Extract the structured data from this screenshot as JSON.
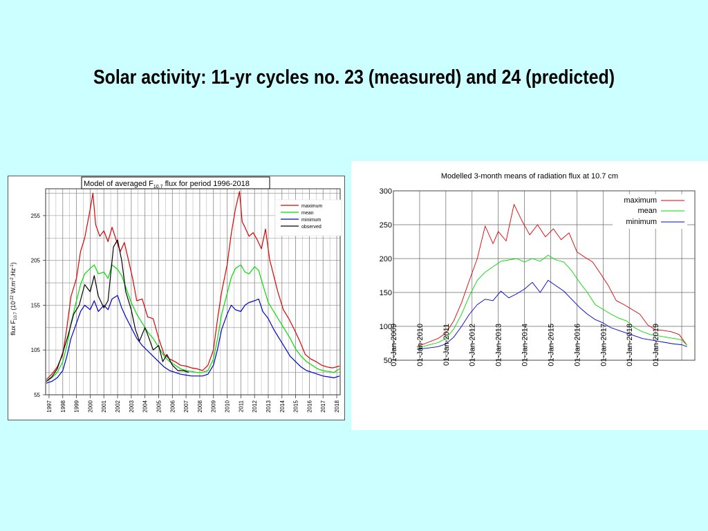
{
  "slide": {
    "title": "Solar activity: 11-yr cycles no. 23 (measured) and 24 (predicted)"
  },
  "colors": {
    "background": "#ccffff",
    "maximum": "#dd0000",
    "mean": "#00dd00",
    "minimum": "#0000cc",
    "observed": "#000000"
  },
  "chart_data": [
    {
      "type": "line",
      "title": "Model of averaged F10.7 flux for period 1996-2018",
      "title_main": "Model of averaged F",
      "title_sub": "10.7",
      "title_tail": " flux for period 1996-2018",
      "ylabel_pre": "flux F",
      "ylabel_sub": "10.7",
      "ylabel_mid": " (10",
      "ylabel_sup1": "-22",
      "ylabel_mid2": " W.m",
      "ylabel_sup2": "-2",
      "ylabel_mid3": ".Hz",
      "ylabel_sup3": "-1",
      "ylabel_end": ")",
      "xlabel": "",
      "ylim": [
        55,
        285
      ],
      "xlim": [
        1996.75,
        2018.25
      ],
      "yticks": [
        "55",
        "105",
        "155",
        "205",
        "255"
      ],
      "xticks": [
        "1997",
        "1998",
        "1999",
        "2000",
        "2001",
        "2002",
        "2003",
        "2004",
        "2005",
        "2006",
        "2007",
        "2008",
        "2009",
        "2010",
        "2011",
        "2012",
        "2013",
        "2014",
        "2015",
        "2016",
        "2017",
        "2018"
      ],
      "grid": true,
      "legend_position": "top-right",
      "series": [
        {
          "name": "maximum",
          "color": "#dd0000",
          "x": [
            1996.8,
            1997.2,
            1997.6,
            1998.0,
            1998.3,
            1998.6,
            1999.0,
            1999.3,
            1999.6,
            2000.0,
            2000.2,
            2000.4,
            2000.7,
            2001.0,
            2001.3,
            2001.6,
            2001.9,
            2002.2,
            2002.5,
            2002.8,
            2003.1,
            2003.4,
            2003.8,
            2004.2,
            2004.6,
            2005.0,
            2005.4,
            2005.8,
            2006.2,
            2006.6,
            2007.0,
            2007.4,
            2007.8,
            2008.2,
            2008.6,
            2009.0,
            2009.3,
            2009.6,
            2010.0,
            2010.3,
            2010.6,
            2010.9,
            2011.1,
            2011.3,
            2011.6,
            2011.9,
            2012.2,
            2012.5,
            2012.8,
            2013.1,
            2013.4,
            2013.7,
            2014.1,
            2014.5,
            2014.9,
            2015.3,
            2015.7,
            2016.1,
            2016.5,
            2016.9,
            2017.3,
            2017.7,
            2018.2
          ],
          "y": [
            72,
            78,
            86,
            100,
            130,
            165,
            185,
            215,
            230,
            262,
            280,
            245,
            232,
            238,
            226,
            242,
            228,
            215,
            225,
            205,
            185,
            160,
            162,
            142,
            140,
            118,
            100,
            95,
            92,
            88,
            87,
            85,
            84,
            82,
            88,
            105,
            140,
            170,
            200,
            235,
            262,
            282,
            248,
            242,
            232,
            236,
            228,
            218,
            240,
            206,
            188,
            170,
            150,
            140,
            128,
            115,
            100,
            95,
            92,
            88,
            86,
            85,
            87
          ]
        },
        {
          "name": "mean",
          "color": "#00dd00",
          "x": [
            1996.8,
            1997.2,
            1997.6,
            1998.0,
            1998.3,
            1998.6,
            1999.0,
            1999.3,
            1999.6,
            2000.0,
            2000.3,
            2000.6,
            2001.0,
            2001.3,
            2001.6,
            2002.0,
            2002.3,
            2002.6,
            2003.0,
            2003.4,
            2003.8,
            2004.2,
            2004.6,
            2005.0,
            2005.4,
            2005.8,
            2006.2,
            2006.6,
            2007.0,
            2007.4,
            2007.8,
            2008.2,
            2008.6,
            2009.0,
            2009.3,
            2009.6,
            2010.0,
            2010.3,
            2010.6,
            2011.0,
            2011.3,
            2011.6,
            2012.0,
            2012.3,
            2012.6,
            2013.0,
            2013.4,
            2013.8,
            2014.2,
            2014.6,
            2015.0,
            2015.4,
            2015.8,
            2016.2,
            2016.6,
            2017.0,
            2017.4,
            2017.8,
            2018.2
          ],
          "y": [
            70,
            74,
            80,
            92,
            110,
            135,
            160,
            178,
            190,
            196,
            200,
            190,
            192,
            185,
            200,
            195,
            188,
            175,
            158,
            145,
            135,
            125,
            118,
            108,
            98,
            92,
            88,
            84,
            82,
            81,
            80,
            80,
            82,
            95,
            118,
            145,
            168,
            186,
            196,
            200,
            192,
            190,
            198,
            194,
            178,
            158,
            148,
            138,
            128,
            118,
            106,
            98,
            92,
            88,
            84,
            82,
            81,
            80,
            84
          ]
        },
        {
          "name": "minimum",
          "color": "#0000cc",
          "x": [
            1996.8,
            1997.2,
            1997.6,
            1998.0,
            1998.3,
            1998.6,
            1999.0,
            1999.3,
            1999.6,
            2000.0,
            2000.3,
            2000.6,
            2001.0,
            2001.3,
            2001.6,
            2002.0,
            2002.3,
            2002.6,
            2003.0,
            2003.4,
            2003.8,
            2004.2,
            2004.6,
            2005.0,
            2005.4,
            2005.8,
            2006.2,
            2006.6,
            2007.0,
            2007.4,
            2007.8,
            2008.2,
            2008.6,
            2009.0,
            2009.3,
            2009.6,
            2010.0,
            2010.3,
            2010.6,
            2011.0,
            2011.3,
            2011.6,
            2012.0,
            2012.3,
            2012.6,
            2013.0,
            2013.4,
            2013.8,
            2014.2,
            2014.6,
            2015.0,
            2015.4,
            2015.8,
            2016.2,
            2016.6,
            2017.0,
            2017.4,
            2017.8,
            2018.2
          ],
          "y": [
            68,
            70,
            74,
            82,
            98,
            118,
            135,
            148,
            155,
            150,
            160,
            148,
            155,
            150,
            162,
            166,
            152,
            142,
            130,
            118,
            110,
            104,
            98,
            92,
            86,
            82,
            80,
            78,
            77,
            76,
            76,
            76,
            78,
            88,
            106,
            128,
            145,
            155,
            150,
            148,
            155,
            158,
            160,
            162,
            148,
            140,
            128,
            118,
            108,
            98,
            92,
            86,
            82,
            80,
            78,
            76,
            75,
            74,
            76
          ]
        },
        {
          "name": "observed",
          "color": "#000000",
          "x": [
            1996.8,
            1997.2,
            1997.6,
            1998.0,
            1998.4,
            1998.8,
            1999.2,
            1999.6,
            2000.0,
            2000.3,
            2000.6,
            2001.0,
            2001.3,
            2001.7,
            2002.0,
            2002.3,
            2002.6,
            2003.0,
            2003.3,
            2003.6,
            2004.0,
            2004.3,
            2004.6,
            2005.0,
            2005.3,
            2005.6,
            2006.0,
            2006.4,
            2006.8,
            2007.2
          ],
          "y": [
            70,
            75,
            84,
            102,
            122,
            145,
            155,
            178,
            170,
            188,
            165,
            152,
            160,
            220,
            228,
            205,
            170,
            150,
            128,
            115,
            130,
            118,
            105,
            110,
            92,
            100,
            88,
            82,
            82,
            80
          ]
        }
      ],
      "legend": [
        "maximum",
        "mean",
        "minimum",
        "observed"
      ]
    },
    {
      "type": "line",
      "title": "Modelled 3-month means of radiation flux at 10.7 cm",
      "xlabel": "",
      "ylabel": "",
      "ylim": [
        50,
        300
      ],
      "yticks": [
        "50",
        "100",
        "150",
        "200",
        "250",
        "300"
      ],
      "xlim": [
        2009.0,
        2020.5
      ],
      "xticks": [
        "01-Jan-2009",
        "01-Jan-2010",
        "01-Jan-2011",
        "01-Jan-2012",
        "01-Jan-2013",
        "01-Jan-2014",
        "01-Jan-2015",
        "01-Jan-2016",
        "01-Jan-2017",
        "01-Jan-2018",
        "01-Jan-2019"
      ],
      "grid": true,
      "legend_position": "top-right",
      "series": [
        {
          "name": "maximum",
          "color": "#dd0000",
          "x": [
            2009.9,
            2010.3,
            2010.7,
            2011.0,
            2011.3,
            2011.6,
            2011.9,
            2012.2,
            2012.5,
            2012.8,
            2013.0,
            2013.3,
            2013.6,
            2013.9,
            2014.2,
            2014.5,
            2014.8,
            2015.1,
            2015.4,
            2015.7,
            2016.0,
            2016.3,
            2016.6,
            2016.9,
            2017.2,
            2017.5,
            2017.8,
            2018.1,
            2018.4,
            2018.7,
            2019.0,
            2019.3,
            2019.6,
            2019.9,
            2020.2
          ],
          "y": [
            70,
            76,
            82,
            90,
            108,
            135,
            168,
            200,
            248,
            222,
            240,
            226,
            280,
            256,
            235,
            250,
            232,
            244,
            228,
            238,
            210,
            202,
            195,
            178,
            160,
            138,
            132,
            125,
            118,
            102,
            95,
            94,
            92,
            88,
            72
          ]
        },
        {
          "name": "mean",
          "color": "#00dd00",
          "x": [
            2009.9,
            2010.3,
            2010.7,
            2011.0,
            2011.3,
            2011.6,
            2011.9,
            2012.2,
            2012.5,
            2012.8,
            2013.1,
            2013.4,
            2013.7,
            2014.0,
            2014.3,
            2014.6,
            2014.9,
            2015.2,
            2015.5,
            2015.8,
            2016.1,
            2016.4,
            2016.7,
            2017.0,
            2017.3,
            2017.6,
            2017.9,
            2018.2,
            2018.5,
            2018.8,
            2019.1,
            2019.4,
            2019.7,
            2020.0,
            2020.2
          ],
          "y": [
            68,
            72,
            76,
            82,
            96,
            118,
            145,
            168,
            180,
            188,
            196,
            198,
            200,
            195,
            200,
            196,
            205,
            198,
            195,
            182,
            165,
            150,
            132,
            125,
            118,
            112,
            108,
            98,
            92,
            88,
            86,
            84,
            82,
            80,
            72
          ]
        },
        {
          "name": "minimum",
          "color": "#0000cc",
          "x": [
            2009.9,
            2010.3,
            2010.7,
            2011.0,
            2011.3,
            2011.6,
            2011.9,
            2012.2,
            2012.5,
            2012.8,
            2013.1,
            2013.4,
            2013.7,
            2014.0,
            2014.3,
            2014.6,
            2014.9,
            2015.2,
            2015.5,
            2015.8,
            2016.1,
            2016.4,
            2016.7,
            2017.0,
            2017.3,
            2017.6,
            2017.9,
            2018.2,
            2018.5,
            2018.8,
            2019.1,
            2019.4,
            2019.7,
            2020.0,
            2020.2
          ],
          "y": [
            66,
            68,
            70,
            74,
            84,
            100,
            118,
            132,
            140,
            138,
            152,
            142,
            148,
            155,
            165,
            150,
            168,
            160,
            152,
            140,
            128,
            118,
            110,
            105,
            98,
            94,
            90,
            86,
            82,
            80,
            78,
            76,
            74,
            73,
            70
          ]
        }
      ],
      "legend": [
        "maximum",
        "mean",
        "minimum"
      ]
    }
  ]
}
